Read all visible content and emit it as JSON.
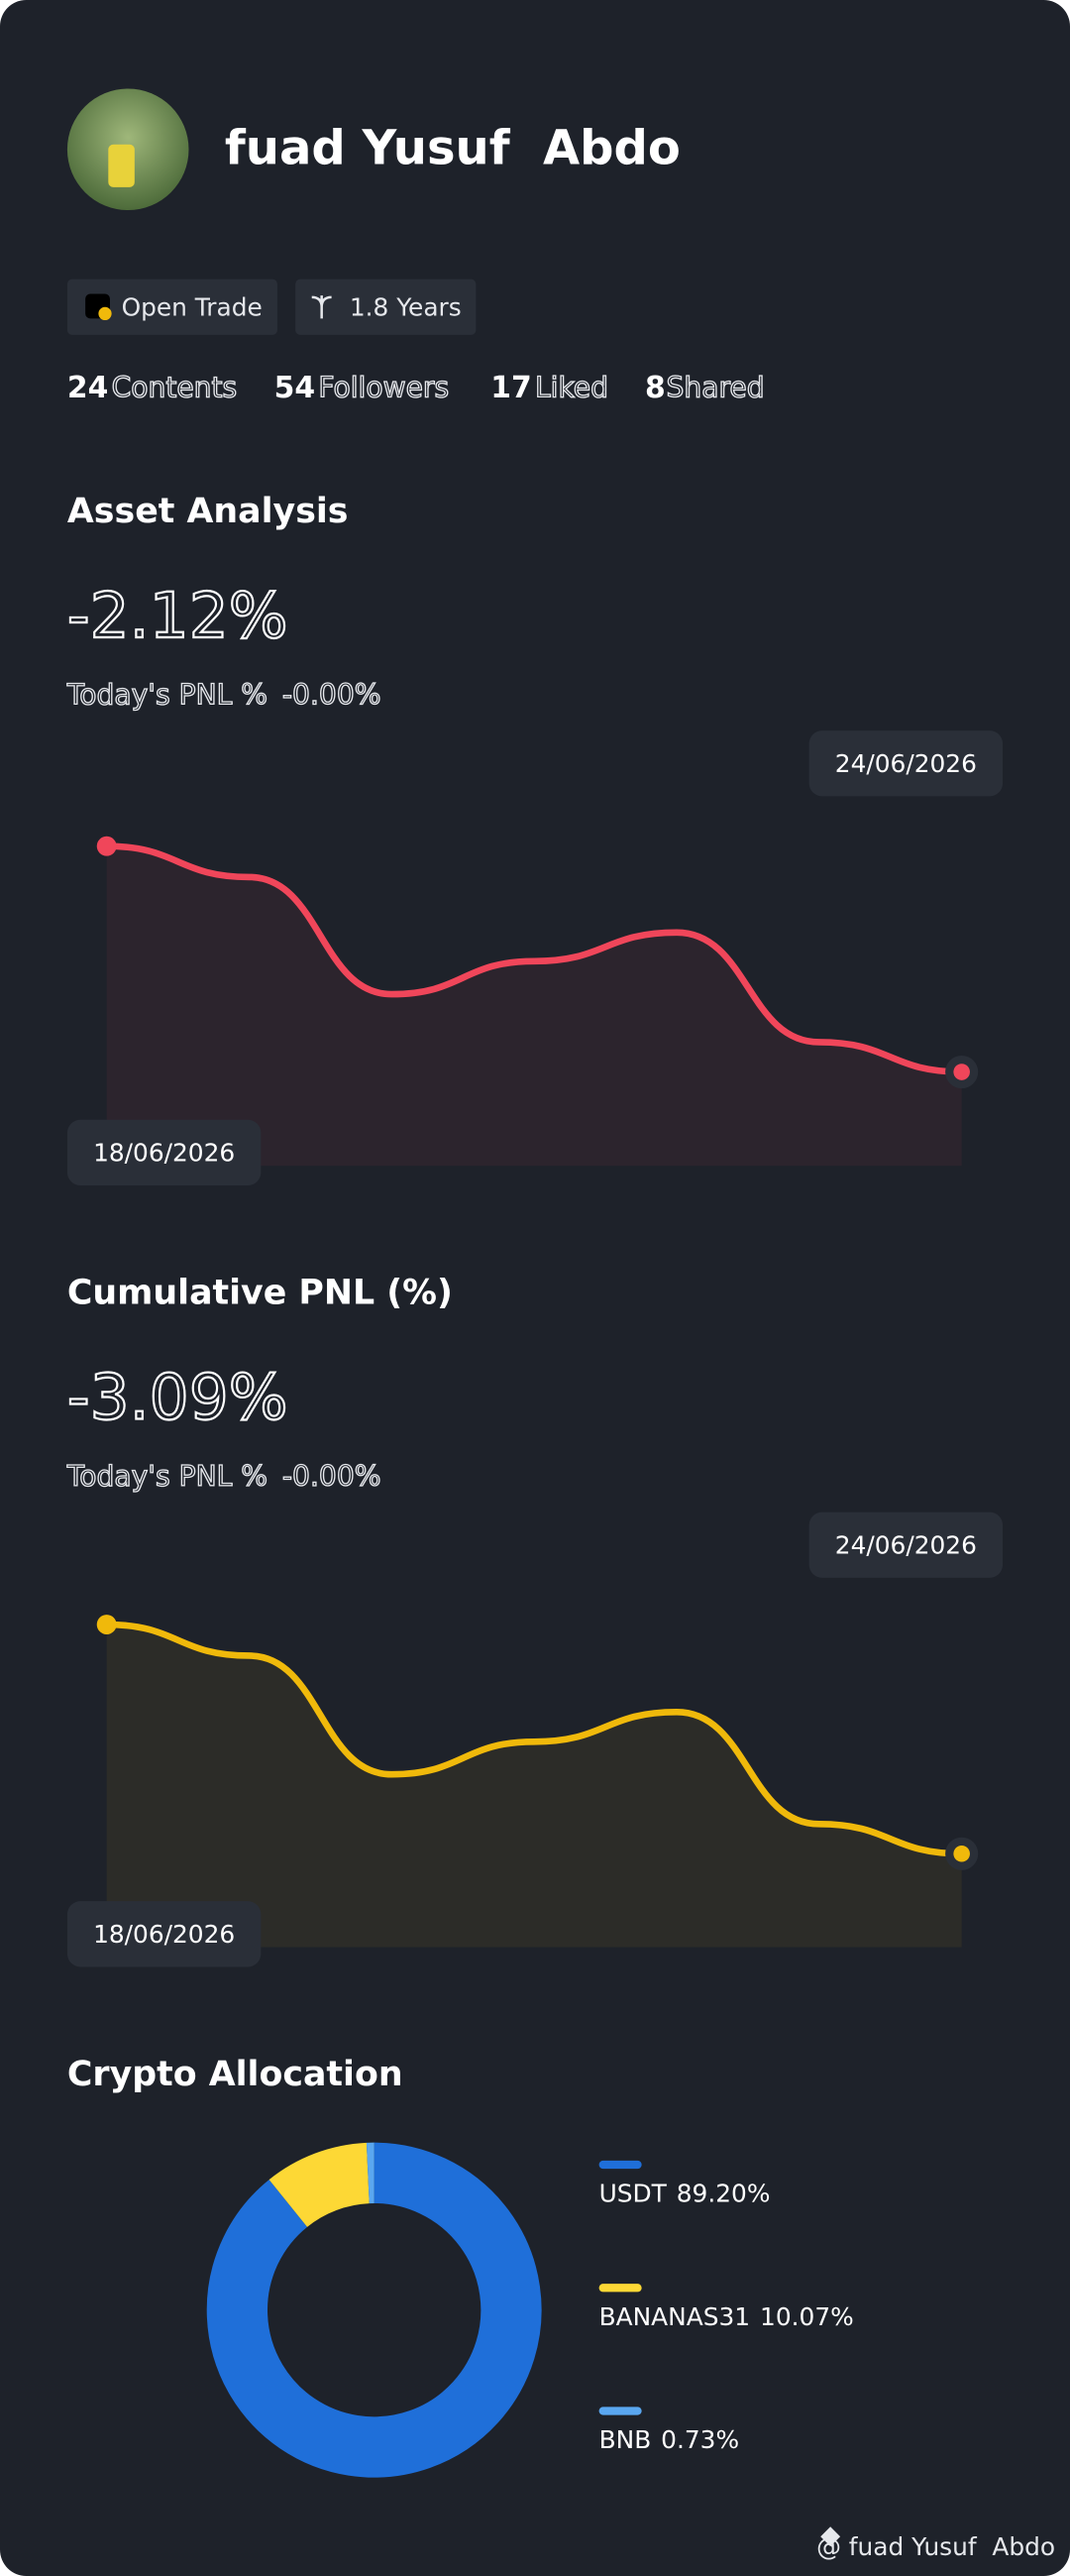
{
  "profile": {
    "name": "fuad Yusuf  Abdo",
    "tags": [
      "Open Trade",
      "1.8 Years"
    ],
    "stats": [
      {
        "count": "24",
        "label": "Contents"
      },
      {
        "count": "54",
        "label": "Followers"
      },
      {
        "count": "17",
        "label": "Liked"
      },
      {
        "count": "8",
        "label": "Shared"
      }
    ]
  },
  "chart_data": [
    {
      "type": "line",
      "title": "Asset Analysis",
      "headline": "-2.12%",
      "today_label": "Today's PNL %",
      "today_value": "-0.00%",
      "categories": [
        "18/06/2026",
        null,
        null,
        null,
        null,
        null,
        "24/06/2026"
      ],
      "series": [
        {
          "color": "#f0465a",
          "values": [
            0,
            -0.29,
            -1.39,
            -1.08,
            -0.81,
            -1.84,
            -2.12
          ]
        }
      ],
      "ylim": [
        -3,
        0.9
      ]
    },
    {
      "type": "line",
      "title": "Cumulative PNL (%)",
      "headline": "-3.09%",
      "today_label": "Today's PNL %",
      "today_value": "-0.00%",
      "categories": [
        "18/06/2026",
        null,
        null,
        null,
        null,
        null,
        "24/06/2026"
      ],
      "series": [
        {
          "color": "#f0b90b",
          "values": [
            0,
            -0.42,
            -2.02,
            -1.58,
            -1.18,
            -2.69,
            -3.09
          ]
        }
      ],
      "ylim": [
        -4.35,
        1.25
      ]
    },
    {
      "type": "donut",
      "title": "Crypto Allocation",
      "categories": [
        "USDT",
        "BANANAS31",
        "BNB"
      ],
      "values": [
        89.2,
        10.07,
        0.73
      ],
      "value_labels": [
        "89.20%",
        "10.07%",
        "0.73%"
      ],
      "colors": [
        "#1f6fd9",
        "#fdd835",
        "#5aa7f0"
      ]
    }
  ],
  "footer": "@ fuad Yusuf  Abdo"
}
